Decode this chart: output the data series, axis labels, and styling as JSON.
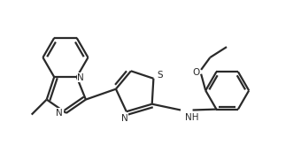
{
  "bg_color": "#ffffff",
  "line_color": "#2a2a2a",
  "text_color": "#2a2a2a",
  "lw": 1.6,
  "figsize": [
    3.4,
    1.81
  ],
  "dpi": 100,
  "xlim": [
    0,
    10
  ],
  "ylim": [
    0,
    5.3
  ]
}
